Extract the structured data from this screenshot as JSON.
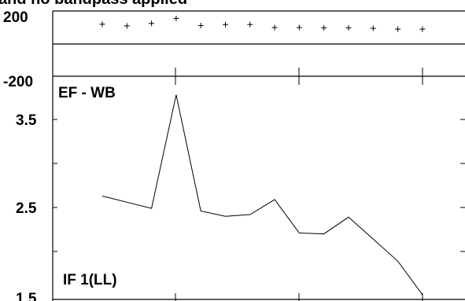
{
  "title": "and no bandpass applied",
  "chart_data": [
    {
      "type": "scatter",
      "panel": "phase",
      "ylim": [
        -200,
        200
      ],
      "yticks": [
        "200",
        "-200"
      ],
      "grid": false,
      "x": [
        1,
        2,
        3,
        4,
        5,
        6,
        7,
        8,
        9,
        10,
        11,
        12,
        13,
        14
      ],
      "series": [
        {
          "values": [
            120,
            110,
            125,
            155,
            112,
            118,
            118,
            100,
            100,
            98,
            98,
            95,
            90,
            90
          ]
        }
      ]
    },
    {
      "type": "line",
      "panel": "amplitude",
      "ylim": [
        1.5,
        3.9
      ],
      "yticks": [
        "3.5",
        "2.5",
        "1.5"
      ],
      "grid": false,
      "annotations": [
        "EF - WB",
        "IF 1(LL)"
      ],
      "x": [
        1,
        2,
        3,
        4,
        5,
        6,
        7,
        8,
        9,
        10,
        11,
        12,
        13,
        14
      ],
      "series": [
        {
          "values": [
            2.63,
            2.56,
            2.49,
            3.78,
            2.46,
            2.4,
            2.42,
            2.59,
            2.21,
            2.2,
            2.39,
            2.14,
            1.89,
            1.51
          ]
        }
      ]
    }
  ]
}
